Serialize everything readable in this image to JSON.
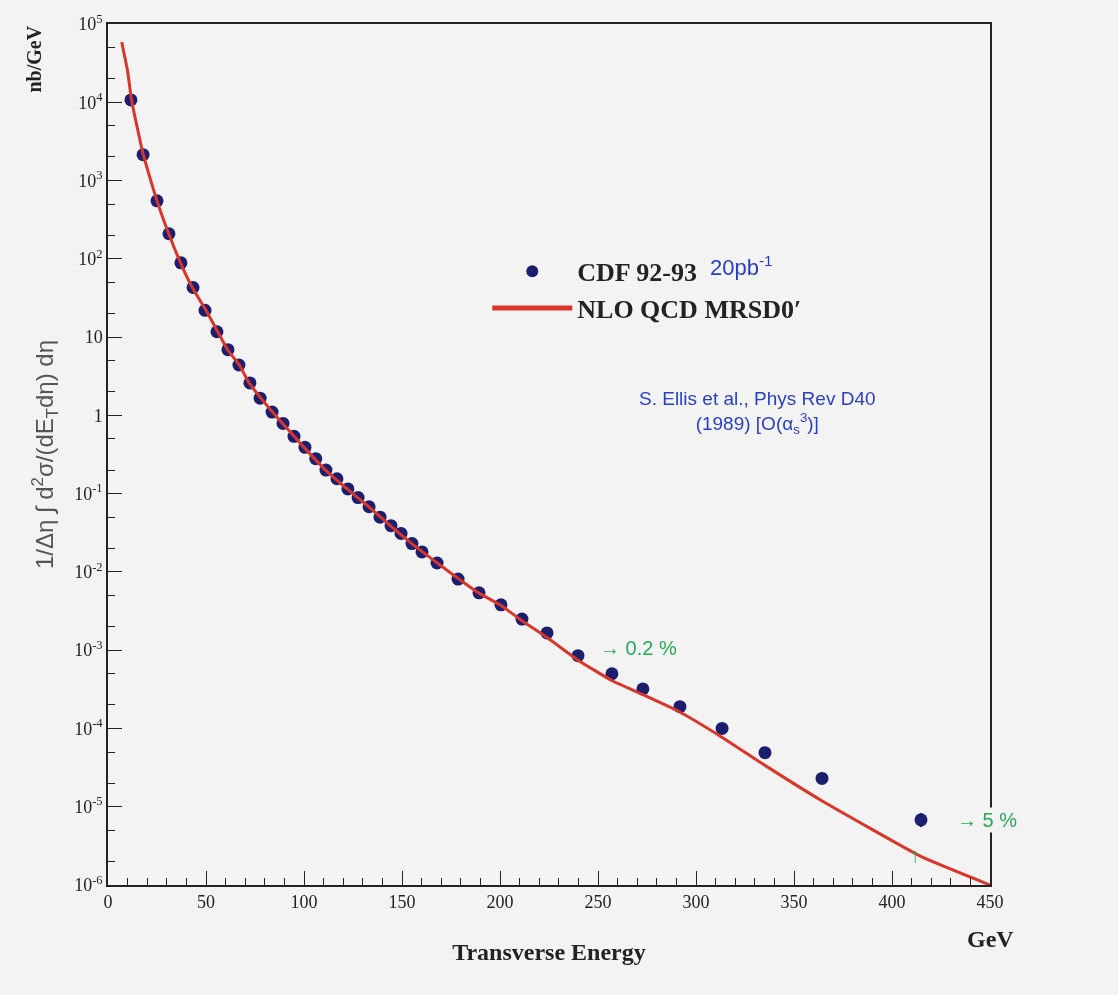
{
  "chart_data": {
    "type": "scatter",
    "xlabel": "Transverse Energy",
    "ylabel": "1/Δη ∫ d$^{2}$σ/(dE$_{T}$dη) dη",
    "log": "y",
    "grid": false,
    "legend": "top right",
    "xlim": [
      0,
      450
    ],
    "xticks": [
      0,
      50,
      100,
      150,
      200,
      250,
      300,
      350,
      400,
      450
    ],
    "ylim": [
      1e-06,
      100000
    ],
    "yticks": [
      {
        "value": 100000,
        "label": "10$^{5}$"
      },
      {
        "value": 10000,
        "label": "10$^{4}$"
      },
      {
        "value": 1000,
        "label": "10$^{3}$"
      },
      {
        "value": 100,
        "label": "10$^{2}$"
      },
      10,
      1,
      {
        "value": 0.1,
        "label": "10$^{-1}$"
      },
      {
        "value": 0.01,
        "label": "10$^{-2}$"
      },
      {
        "value": 0.001,
        "label": "10$^{-3}$"
      },
      {
        "value": 0.0001,
        "label": "10$^{-4}$"
      },
      {
        "value": 1e-05,
        "label": "10$^{-5}$"
      },
      {
        "value": 1e-06,
        "label": "10$^{-6}$"
      }
    ],
    "series": [
      {
        "name": "CDF 92-93",
        "type": "scatter",
        "color": "#1c1f6e",
        "marker": "circle",
        "x": [
          11.7,
          17.9,
          25,
          31.1,
          37.2,
          43.4,
          49.5,
          55.6,
          61.2,
          66.8,
          72.4,
          77.6,
          83.7,
          89.3,
          94.9,
          100.5,
          106,
          111.2,
          116.8,
          122.4,
          127.6,
          133.2,
          138.8,
          144.4,
          149.5,
          155.1,
          160.2,
          167.9,
          178.6,
          189.3,
          200.5,
          211.2,
          224,
          239.8,
          257.1,
          272.9,
          291.8,
          313.3,
          335.2,
          364.3,
          414.8
        ],
        "values": [
          10700,
          2140,
          550,
          209,
          89,
          43,
          22,
          11.7,
          6.9,
          4.4,
          2.6,
          1.66,
          1.1,
          0.79,
          0.54,
          0.39,
          0.28,
          0.2,
          0.155,
          0.115,
          0.089,
          0.068,
          0.05,
          0.039,
          0.031,
          0.023,
          0.018,
          0.013,
          0.0081,
          0.0054,
          0.0038,
          0.0025,
          0.00166,
          0.00085,
          0.0005,
          0.00032,
          0.00019,
          0.0001,
          4.9e-05,
          2.3e-05,
          6.8e-06
        ],
        "errors": [
          null,
          null,
          null,
          null,
          null,
          null,
          null,
          null,
          null,
          null,
          null,
          null,
          null,
          null,
          null,
          null,
          null,
          null,
          null,
          null,
          null,
          null,
          null,
          null,
          null,
          null,
          null,
          null,
          null,
          null,
          null,
          null,
          null,
          null,
          null,
          null,
          null,
          null,
          null,
          null,
          [
            5.5e-06,
            8.3e-06
          ]
        ]
      },
      {
        "name": "NLO QCD MRSD0′",
        "type": "line",
        "color": "#d8362b",
        "line_style": "solid",
        "x": [
          7,
          10,
          12,
          18,
          25,
          31,
          37,
          43,
          50,
          56,
          61,
          67,
          72,
          78,
          84,
          89,
          95,
          100,
          111,
          122,
          133,
          144,
          155,
          168,
          179,
          189,
          200,
          211,
          224,
          240,
          257,
          273,
          291,
          313,
          335,
          364,
          415,
          450
        ],
        "values": [
          59000,
          25000,
          10700,
          2140,
          550,
          209,
          89,
          43,
          22,
          11.7,
          6.9,
          4.4,
          2.6,
          1.66,
          1.1,
          0.79,
          0.54,
          0.39,
          0.2,
          0.115,
          0.068,
          0.039,
          0.023,
          0.013,
          0.0081,
          0.0054,
          0.0038,
          0.0024,
          0.00145,
          0.00074,
          0.00041,
          0.00027,
          0.000166,
          7.8e-05,
          3.4e-05,
          1.2e-05,
          2.3e-06,
          1e-06
        ]
      }
    ],
    "annotations": [
      "nb/GeV",
      "GeV",
      "20pb$^{-1}$",
      "S. Ellis et al., Phys Rev D40 (1989) [O(α$_{s}$$^{3}$)]",
      "→ 0.2 %",
      "→ 5 %",
      "↑"
    ]
  }
}
